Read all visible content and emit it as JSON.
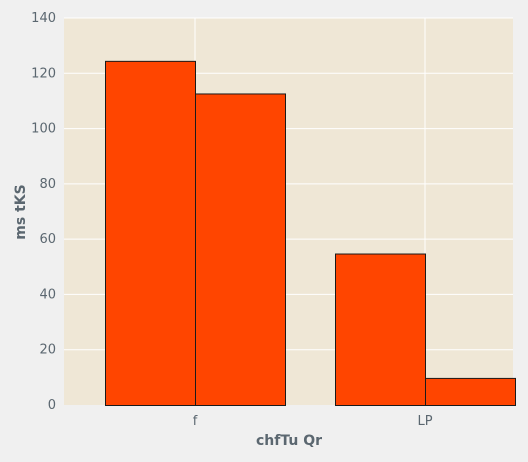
{
  "chart_data": {
    "type": "bar",
    "title": "",
    "xlabel": "chfTu  Qr",
    "ylabel": "ms tKS",
    "categories": [
      "f",
      "LP"
    ],
    "series": [
      {
        "values": [
          124.5,
          54.8
        ]
      },
      {
        "values": [
          112.7,
          9.8
        ]
      }
    ],
    "ylim": [
      0,
      140
    ],
    "yticks": [
      0,
      20,
      40,
      60,
      80,
      100,
      120,
      140
    ],
    "ytick_labels": [
      "0",
      "20",
      "40",
      "60",
      "80",
      "100",
      "120",
      "140"
    ],
    "grid": true,
    "legend": "none",
    "colors": {
      "bar_fill": "#ff4500",
      "bar_edge": "#1a1a1a",
      "plot_background": "#efe7d6",
      "figure_background": "#f0f0f0",
      "grid": "#ffffff",
      "text": "#5b6770"
    }
  }
}
